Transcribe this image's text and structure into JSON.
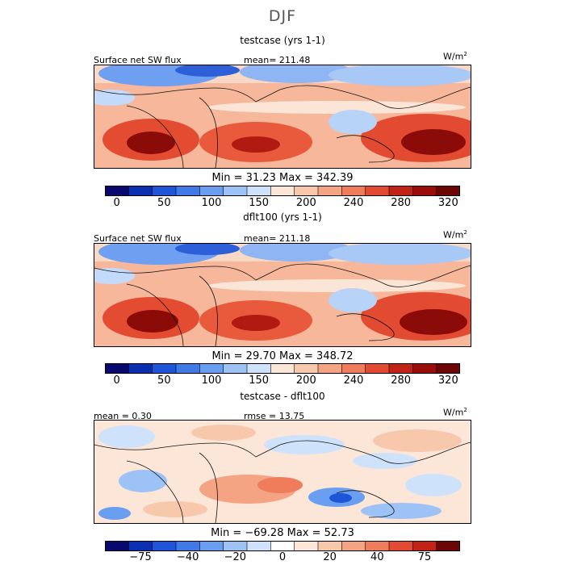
{
  "title": "DJF",
  "panels": [
    {
      "title": "testcase (yrs 1-1)",
      "left_label": "Surface net SW flux",
      "center_label": "mean= 211.48",
      "units": "W/m",
      "units_sup": "2",
      "minmax": "Min =  31.23 Max = 342.39",
      "colorbar": {
        "colors": [
          "#08086e",
          "#0a2fb0",
          "#1f55d8",
          "#3f7ae6",
          "#6a9ef0",
          "#9dc2f6",
          "#cfe2fb",
          "#fbe6d8",
          "#f8c8ad",
          "#f4a482",
          "#ef7c5a",
          "#e24a31",
          "#c22316",
          "#9a0d0a",
          "#6e0505"
        ],
        "ticks": [
          "0",
          "50",
          "100",
          "150",
          "200",
          "240",
          "280",
          "320"
        ]
      }
    },
    {
      "title": "dflt100 (yrs 1-1)",
      "left_label": "Surface net SW flux",
      "center_label": "mean= 211.18",
      "units": "W/m",
      "units_sup": "2",
      "minmax": "Min =  29.70 Max = 348.72",
      "colorbar": {
        "colors": [
          "#08086e",
          "#0a2fb0",
          "#1f55d8",
          "#3f7ae6",
          "#6a9ef0",
          "#9dc2f6",
          "#cfe2fb",
          "#fbe6d8",
          "#f8c8ad",
          "#f4a482",
          "#ef7c5a",
          "#e24a31",
          "#c22316",
          "#9a0d0a",
          "#6e0505"
        ],
        "ticks": [
          "0",
          "50",
          "100",
          "150",
          "200",
          "240",
          "280",
          "320"
        ]
      }
    },
    {
      "title": "testcase - dflt100",
      "left_label": "mean =   0.30",
      "center_label": "rmse =   13.75",
      "units": "W/m",
      "units_sup": "2",
      "minmax": "Min = −69.28 Max =   52.73",
      "colorbar": {
        "colors": [
          "#08086e",
          "#0a2fb0",
          "#1f55d8",
          "#3f7ae6",
          "#6a9ef0",
          "#9dc2f6",
          "#cfe2fb",
          "#ffffff",
          "#fbe6d8",
          "#f8c8ad",
          "#f4a482",
          "#ef7c5a",
          "#e24a31",
          "#c22316",
          "#6e0505"
        ],
        "ticks": [
          "−75",
          "−40",
          "−20",
          "0",
          "20",
          "40",
          "75"
        ]
      }
    }
  ]
}
